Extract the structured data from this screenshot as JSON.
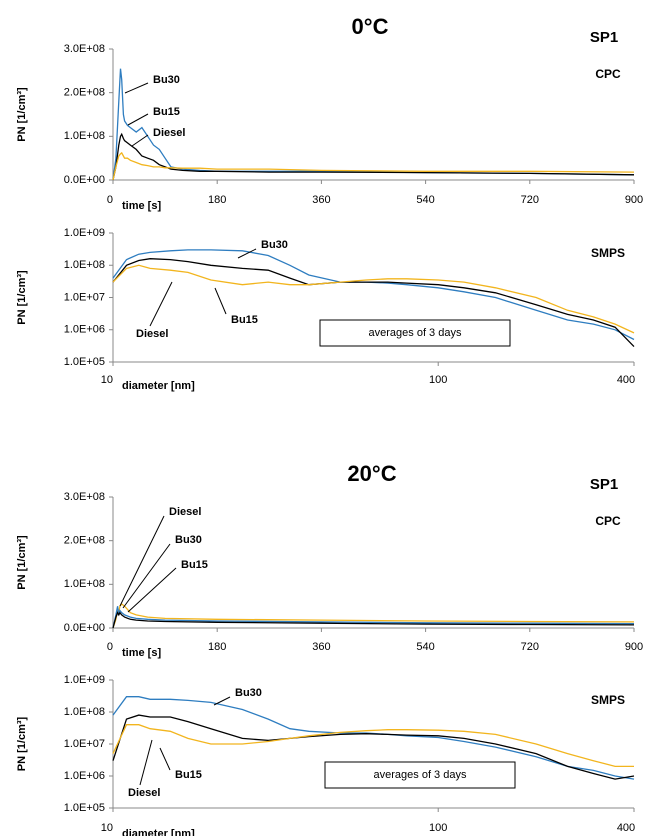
{
  "chart_data": [
    {
      "type": "line",
      "title": "0°C",
      "subtitle": "SP1",
      "label": "CPC",
      "xlabel": "time [s]",
      "ylabel": "PN [1/cm³]",
      "xlim": [
        0,
        900
      ],
      "xticks": [
        0,
        180,
        360,
        540,
        720,
        900
      ],
      "ylim": [
        0,
        300000000.0
      ],
      "yticks": [
        {
          "value": 0,
          "label": "0.0E+00"
        },
        {
          "value": 100000000.0,
          "label": "1.0E+08"
        },
        {
          "value": 200000000.0,
          "label": "2.0E+08"
        },
        {
          "value": 300000000.0,
          "label": "3.0E+08"
        }
      ],
      "x": [
        0,
        5,
        10,
        13,
        15,
        18,
        20,
        25,
        30,
        40,
        50,
        60,
        70,
        80,
        90,
        100,
        120,
        150,
        180,
        270,
        360,
        540,
        720,
        900
      ],
      "series": [
        {
          "name": "Bu30",
          "color": "#2e7dc0",
          "values": [
            0,
            50000000.0,
            180000000.0,
            255000000.0,
            230000000.0,
            150000000.0,
            135000000.0,
            125000000.0,
            120000000.0,
            110000000.0,
            120000000.0,
            100000000.0,
            80000000.0,
            70000000.0,
            50000000.0,
            30000000.0,
            25000000.0,
            22000000.0,
            20000000.0,
            20000000.0,
            20000000.0,
            17000000.0,
            15000000.0,
            12000000.0
          ]
        },
        {
          "name": "Bu15",
          "color": "#000000",
          "values": [
            0,
            30000000.0,
            80000000.0,
            100000000.0,
            105000000.0,
            95000000.0,
            90000000.0,
            85000000.0,
            80000000.0,
            70000000.0,
            55000000.0,
            50000000.0,
            45000000.0,
            35000000.0,
            30000000.0,
            25000000.0,
            22000000.0,
            20000000.0,
            20000000.0,
            18000000.0,
            18000000.0,
            17000000.0,
            15000000.0,
            12000000.0
          ]
        },
        {
          "name": "Diesel",
          "color": "#f2b51e",
          "values": [
            0,
            30000000.0,
            55000000.0,
            60000000.0,
            62000000.0,
            55000000.0,
            50000000.0,
            50000000.0,
            45000000.0,
            40000000.0,
            35000000.0,
            33000000.0,
            30000000.0,
            30000000.0,
            28000000.0,
            28000000.0,
            27000000.0,
            27000000.0,
            25000000.0,
            25000000.0,
            22000000.0,
            20000000.0,
            20000000.0,
            18000000.0
          ]
        }
      ]
    },
    {
      "type": "line",
      "label": "SMPS",
      "xlabel": "diameter [nm]",
      "ylabel": "PN [1/cm³]",
      "xscale": "log",
      "yscale": "log",
      "note": "averages of 3 days",
      "xlim": [
        10,
        400
      ],
      "xticks": [
        10,
        100,
        400
      ],
      "ylim": [
        100000.0,
        1000000000.0
      ],
      "yticks": [
        {
          "value": 100000.0,
          "label": "1.0E+05"
        },
        {
          "value": 1000000.0,
          "label": "1.0E+06"
        },
        {
          "value": 10000000.0,
          "label": "1.0E+07"
        },
        {
          "value": 100000000.0,
          "label": "1.0E+08"
        },
        {
          "value": 1000000000.0,
          "label": "1.0E+09"
        }
      ],
      "x": [
        10,
        11,
        12,
        13,
        15,
        17,
        20,
        25,
        30,
        35,
        40,
        50,
        60,
        70,
        80,
        100,
        120,
        150,
        200,
        250,
        300,
        350,
        400
      ],
      "series": [
        {
          "name": "Bu30",
          "color": "#2e7dc0",
          "values": [
            40000000.0,
            150000000.0,
            220000000.0,
            250000000.0,
            280000000.0,
            300000000.0,
            300000000.0,
            280000000.0,
            200000000.0,
            100000000.0,
            50000000.0,
            30000000.0,
            30000000.0,
            28000000.0,
            25000000.0,
            20000000.0,
            15000000.0,
            10000000.0,
            4000000.0,
            2000000.0,
            1500000.0,
            1000000.0,
            500000.0
          ]
        },
        {
          "name": "Bu15",
          "color": "#000000",
          "values": [
            30000000.0,
            100000000.0,
            140000000.0,
            160000000.0,
            150000000.0,
            130000000.0,
            100000000.0,
            80000000.0,
            70000000.0,
            40000000.0,
            25000000.0,
            30000000.0,
            30000000.0,
            30000000.0,
            28000000.0,
            25000000.0,
            20000000.0,
            14000000.0,
            6000000.0,
            3000000.0,
            2000000.0,
            1200000.0,
            300000.0
          ]
        },
        {
          "name": "Diesel",
          "color": "#f2b51e",
          "values": [
            30000000.0,
            80000000.0,
            100000000.0,
            80000000.0,
            70000000.0,
            60000000.0,
            35000000.0,
            25000000.0,
            30000000.0,
            25000000.0,
            25000000.0,
            30000000.0,
            35000000.0,
            38000000.0,
            38000000.0,
            35000000.0,
            30000000.0,
            20000000.0,
            10000000.0,
            4000000.0,
            2500000.0,
            1500000.0,
            800000.0
          ]
        }
      ]
    },
    {
      "type": "line",
      "title": "20°C",
      "subtitle": "SP1",
      "label": "CPC",
      "xlabel": "time [s]",
      "ylabel": "PN [1/cm³]",
      "xlim": [
        0,
        900
      ],
      "xticks": [
        0,
        180,
        360,
        540,
        720,
        900
      ],
      "ylim": [
        0,
        300000000.0
      ],
      "yticks": [
        {
          "value": 0,
          "label": "0.0E+00"
        },
        {
          "value": 100000000.0,
          "label": "1.0E+08"
        },
        {
          "value": 200000000.0,
          "label": "2.0E+08"
        },
        {
          "value": 300000000.0,
          "label": "3.0E+08"
        }
      ],
      "x": [
        0,
        5,
        8,
        10,
        12,
        15,
        20,
        30,
        40,
        60,
        90,
        180,
        360,
        540,
        720,
        900
      ],
      "series": [
        {
          "name": "Diesel",
          "color": "#f2b51e",
          "values": [
            0,
            20000000.0,
            40000000.0,
            35000000.0,
            50000000.0,
            55000000.0,
            50000000.0,
            35000000.0,
            30000000.0,
            25000000.0,
            22000000.0,
            20000000.0,
            18000000.0,
            16000000.0,
            15000000.0,
            14000000.0
          ]
        },
        {
          "name": "Bu30",
          "color": "#2e7dc0",
          "values": [
            0,
            30000000.0,
            50000000.0,
            30000000.0,
            40000000.0,
            35000000.0,
            30000000.0,
            25000000.0,
            22000000.0,
            20000000.0,
            18000000.0,
            16000000.0,
            14000000.0,
            12000000.0,
            11000000.0,
            10000000.0
          ]
        },
        {
          "name": "Bu15",
          "color": "#000000",
          "values": [
            0,
            25000000.0,
            35000000.0,
            30000000.0,
            35000000.0,
            30000000.0,
            25000000.0,
            20000000.0,
            18000000.0,
            16000000.0,
            15000000.0,
            13000000.0,
            11000000.0,
            9000000.0,
            8000000.0,
            7000000.0
          ]
        }
      ]
    },
    {
      "type": "line",
      "label": "SMPS",
      "xlabel": "diameter [nm]",
      "ylabel": "PN [1/cm³]",
      "xscale": "log",
      "yscale": "log",
      "note": "averages of 3 days",
      "xlim": [
        10,
        400
      ],
      "xticks": [
        10,
        100,
        400
      ],
      "ylim": [
        100000.0,
        1000000000.0
      ],
      "yticks": [
        {
          "value": 100000.0,
          "label": "1.0E+05"
        },
        {
          "value": 1000000.0,
          "label": "1.0E+06"
        },
        {
          "value": 10000000.0,
          "label": "1.0E+07"
        },
        {
          "value": 100000000.0,
          "label": "1.0E+08"
        },
        {
          "value": 1000000000.0,
          "label": "1.0E+09"
        }
      ],
      "x": [
        10,
        11,
        12,
        13,
        15,
        17,
        20,
        25,
        30,
        35,
        40,
        50,
        60,
        70,
        80,
        100,
        120,
        150,
        200,
        250,
        300,
        350,
        400
      ],
      "series": [
        {
          "name": "Bu30",
          "color": "#2e7dc0",
          "values": [
            80000000.0,
            300000000.0,
            300000000.0,
            250000000.0,
            250000000.0,
            230000000.0,
            200000000.0,
            120000000.0,
            60000000.0,
            30000000.0,
            25000000.0,
            22000000.0,
            22000000.0,
            20000000.0,
            18000000.0,
            16000000.0,
            12000000.0,
            8000000.0,
            4000000.0,
            2000000.0,
            1500000.0,
            1000000.0,
            800000.0
          ]
        },
        {
          "name": "Bu15",
          "color": "#000000",
          "values": [
            3000000.0,
            60000000.0,
            80000000.0,
            70000000.0,
            70000000.0,
            50000000.0,
            30000000.0,
            15000000.0,
            13000000.0,
            15000000.0,
            17000000.0,
            20000000.0,
            21000000.0,
            20000000.0,
            19000000.0,
            18000000.0,
            15000000.0,
            10000000.0,
            5000000.0,
            2000000.0,
            1200000.0,
            800000.0,
            1000000.0
          ]
        },
        {
          "name": "Diesel",
          "color": "#f2b51e",
          "values": [
            5000000.0,
            40000000.0,
            40000000.0,
            30000000.0,
            25000000.0,
            15000000.0,
            10000000.0,
            10000000.0,
            12000000.0,
            15000000.0,
            18000000.0,
            23000000.0,
            26000000.0,
            28000000.0,
            28000000.0,
            27000000.0,
            25000000.0,
            20000000.0,
            10000000.0,
            5000000.0,
            3000000.0,
            2000000.0,
            2000000.0
          ]
        }
      ]
    }
  ]
}
